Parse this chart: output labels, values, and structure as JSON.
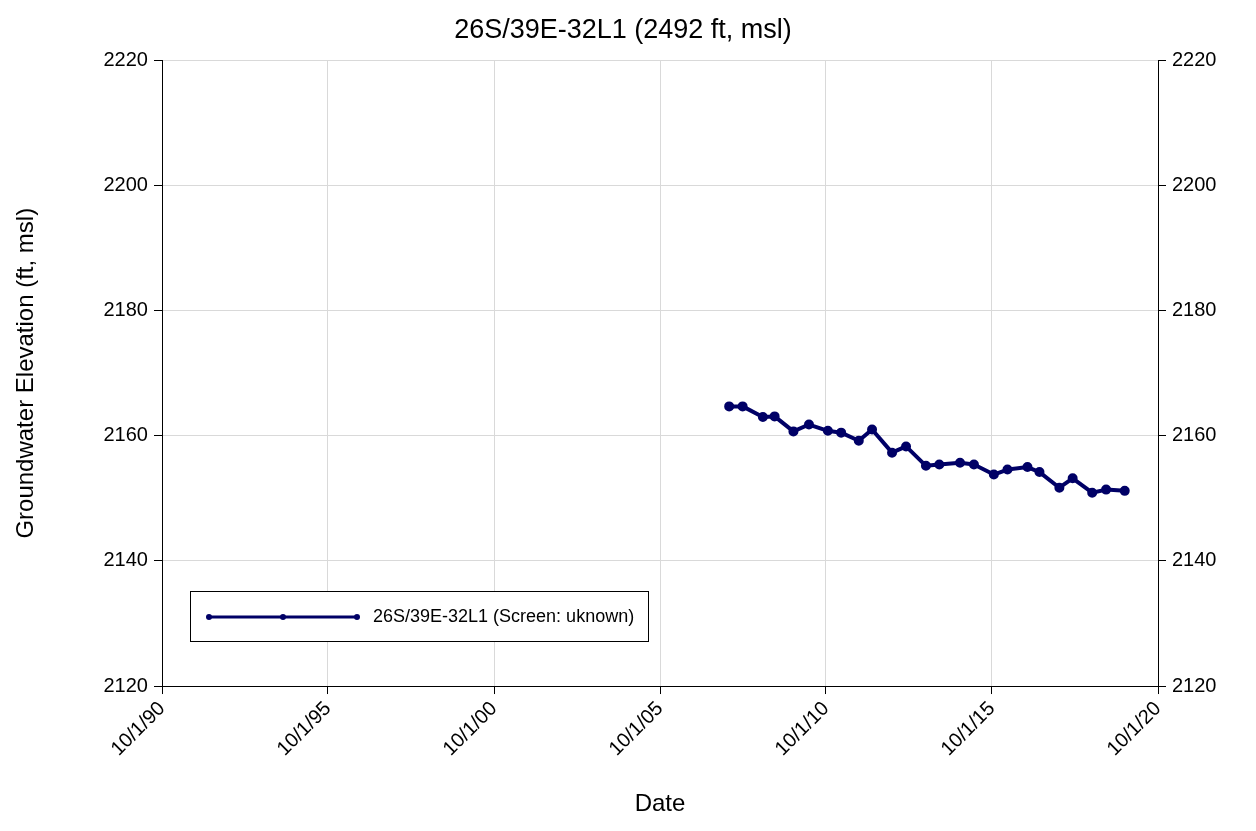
{
  "chart_data": {
    "type": "line",
    "title": "26S/39E-32L1 (2492 ft, msl)",
    "xlabel": "Date",
    "ylabel": "Groundwater Elevation (ft, msl)",
    "x": [
      "2007-11-01",
      "2008-03-28",
      "2008-11-06",
      "2009-03-15",
      "2009-10-08",
      "2010-03-28",
      "2010-10-22",
      "2011-03-17",
      "2011-09-27",
      "2012-02-20",
      "2012-09-27",
      "2013-02-28",
      "2013-10-05",
      "2014-03-01",
      "2014-10-15",
      "2015-03-17",
      "2015-10-22",
      "2016-03-20",
      "2016-10-26",
      "2017-03-07",
      "2017-10-12",
      "2018-03-07",
      "2018-10-08",
      "2019-03-10",
      "2019-10-01"
    ],
    "series": [
      {
        "name": "26S/39E-32L1 (Screen: uknown)",
        "color": "#000066",
        "values": [
          2164.7,
          2164.7,
          2163.0,
          2163.1,
          2160.7,
          2161.8,
          2160.8,
          2160.5,
          2159.2,
          2161.0,
          2157.3,
          2158.3,
          2155.2,
          2155.4,
          2155.7,
          2155.4,
          2153.8,
          2154.6,
          2155.0,
          2154.2,
          2151.7,
          2153.2,
          2150.9,
          2151.4,
          2151.2
        ]
      }
    ],
    "xlim": [
      "1990-10-01",
      "2020-10-01"
    ],
    "xticks": [
      {
        "value": "1990-10-01",
        "label": "10/1/90"
      },
      {
        "value": "1995-10-01",
        "label": "10/1/95"
      },
      {
        "value": "2000-10-01",
        "label": "10/1/00"
      },
      {
        "value": "2005-10-01",
        "label": "10/1/05"
      },
      {
        "value": "2010-10-01",
        "label": "10/1/10"
      },
      {
        "value": "2015-10-01",
        "label": "10/1/15"
      },
      {
        "value": "2020-10-01",
        "label": "10/1/20"
      }
    ],
    "ylim": [
      2120,
      2220
    ],
    "yticks": [
      2120,
      2140,
      2160,
      2180,
      2200,
      2220
    ],
    "y2lim": [
      2120,
      2220
    ],
    "y2ticks": [
      2120,
      2140,
      2160,
      2180,
      2200,
      2220
    ],
    "grid": true,
    "legend": "bottom left",
    "marker": "circle",
    "line_style": "solid"
  }
}
